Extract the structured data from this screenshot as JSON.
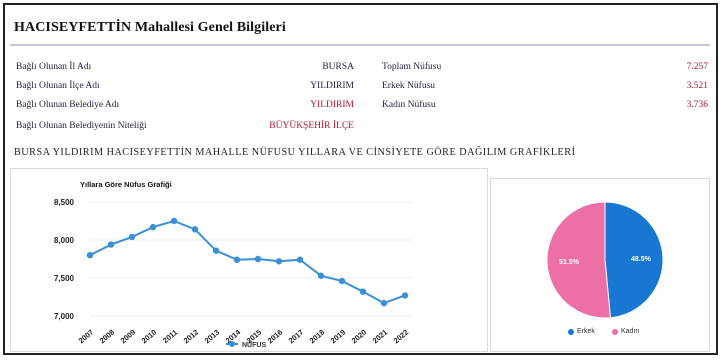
{
  "page": {
    "title": "HACISEYFETTİN Mahallesi Genel Bilgileri",
    "section_title": "BURSA YILDIRIM HACISEYFETTİN MAHALLE NÜFUSU YILLARA VE CİNSİYETE GÖRE DAĞILIM GRAFİKLERİ"
  },
  "info_left": [
    {
      "label": "Bağlı Olunan İl Adı",
      "value": "BURSA"
    },
    {
      "label": "Bağlı Olunan İlçe Adı",
      "value": "YILDIRIM"
    },
    {
      "label": "Bağlı Olunan Belediye Adı",
      "value": "YILDIRIM"
    },
    {
      "label": "Bağlı Olunan Belediyenin Niteliği",
      "value": "BÜYÜKŞEHİR İLÇE"
    }
  ],
  "info_right": [
    {
      "label": "Toplam Nüfusu",
      "value": "7.257"
    },
    {
      "label": "Erkek Nüfusu",
      "value": "3.521"
    },
    {
      "label": "Kadın Nüfusu",
      "value": "3.736"
    }
  ],
  "colors": {
    "line": "#3a8fd6",
    "erkek": "#1877d2",
    "kadin": "#ec6fa6",
    "value_red": "#b01830"
  },
  "chart_data": [
    {
      "type": "line",
      "title": "Yıllara Göre Nüfus Grafiği",
      "x": [
        "2007",
        "2008",
        "2009",
        "2010",
        "2011",
        "2012",
        "2013",
        "2014",
        "2015",
        "2016",
        "2017",
        "2018",
        "2019",
        "2020",
        "2021",
        "2022"
      ],
      "series": [
        {
          "name": "NÜFUS",
          "values": [
            7800,
            7940,
            8040,
            8170,
            8250,
            8140,
            7860,
            7740,
            7750,
            7720,
            7740,
            7530,
            7460,
            7320,
            7170,
            7270
          ]
        }
      ],
      "yticks": [
        "8,500",
        "8,000",
        "7,500",
        "7,000"
      ],
      "ylim": [
        7000,
        8500
      ],
      "grid": true,
      "legend": "bottom-center"
    },
    {
      "type": "pie",
      "labels": [
        "Erkek",
        "Kadın"
      ],
      "values": [
        48.5,
        51.5
      ],
      "data_labels": [
        "48.5%",
        "51.5%"
      ],
      "legend": "bottom-center"
    }
  ]
}
